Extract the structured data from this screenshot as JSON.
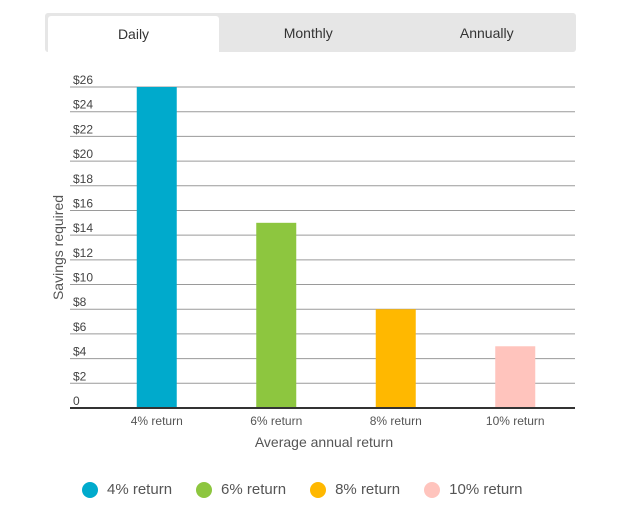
{
  "tabs": [
    {
      "label": "Daily",
      "active": true
    },
    {
      "label": "Monthly",
      "active": false
    },
    {
      "label": "Annually",
      "active": false
    }
  ],
  "chart_data": {
    "type": "bar",
    "categories": [
      "4% return",
      "6% return",
      "8% return",
      "10% return"
    ],
    "values": [
      26,
      15,
      8,
      5
    ],
    "colors": [
      "#00aacc",
      "#8dc63f",
      "#ffb800",
      "#ffc4bd"
    ],
    "xlabel": "Average annual return",
    "ylabel": "Savings required",
    "ylim": [
      0,
      26
    ],
    "yticks": [
      0,
      2,
      4,
      6,
      8,
      10,
      12,
      14,
      16,
      18,
      20,
      22,
      24,
      26
    ],
    "ytick_labels": [
      "0",
      "$2",
      "$4",
      "$6",
      "$8",
      "$10",
      "$12",
      "$14",
      "$16",
      "$18",
      "$20",
      "$22",
      "$24",
      "$26"
    ],
    "grid": true,
    "legend_position": "bottom"
  },
  "legend": [
    {
      "label": "4% return",
      "color": "#00aacc"
    },
    {
      "label": "6% return",
      "color": "#8dc63f"
    },
    {
      "label": "8% return",
      "color": "#ffb800"
    },
    {
      "label": "10% return",
      "color": "#ffc4bd"
    }
  ]
}
